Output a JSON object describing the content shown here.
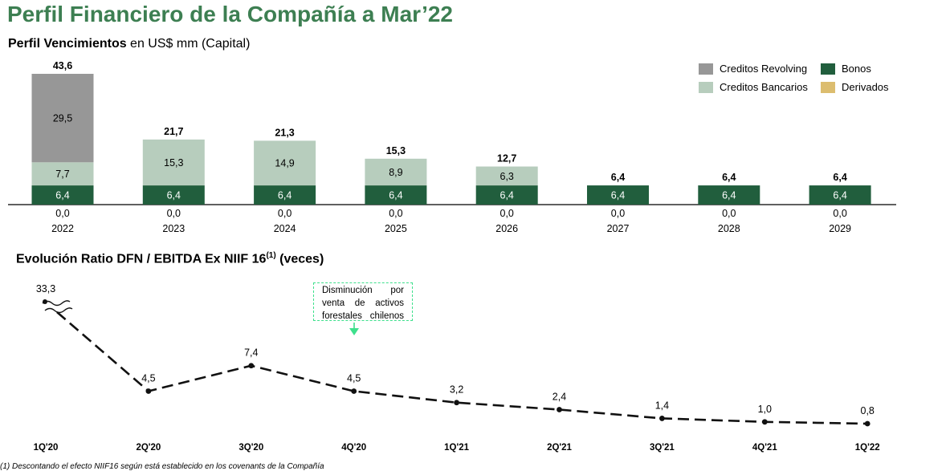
{
  "title": "Perfil Financiero de la Compañía a Mar’22",
  "section1": {
    "bold": "Perfil Vencimientos",
    "rest": " en US$ mm (Capital)"
  },
  "section2": {
    "label": "Evolución Ratio DFN / EBITDA Ex NIIF 16",
    "sup": "(1)",
    "suffix": " (veces)"
  },
  "callout": [
    "Disminución por",
    "venta de activos",
    "forestales chilenos"
  ],
  "footnote": "(1)    Descontando el efecto NIIF16 según está establecido en los covenants de la Compañía",
  "colors": {
    "bonos": "#215e3d",
    "bancarios": "#b7cdbd",
    "revolving": "#979797",
    "derivados": "#dcbd6f",
    "title_green": "#3d7f52",
    "callout_border": "#3ee08c"
  },
  "chart_data": [
    {
      "type": "bar",
      "stacked": true,
      "categories": [
        "2022",
        "2023",
        "2024",
        "2025",
        "2026",
        "2027",
        "2028",
        "2029"
      ],
      "series": [
        {
          "name": "Bonos",
          "values": [
            6.4,
            6.4,
            6.4,
            6.4,
            6.4,
            6.4,
            6.4,
            6.4
          ],
          "color": "#215e3d"
        },
        {
          "name": "Creditos Bancarios",
          "values": [
            7.7,
            15.3,
            14.9,
            8.9,
            6.3,
            0,
            0,
            0
          ],
          "color": "#b7cdbd"
        },
        {
          "name": "Creditos Revolving",
          "values": [
            29.5,
            0,
            0,
            0,
            0,
            0,
            0,
            0
          ],
          "color": "#979797"
        },
        {
          "name": "Derivados",
          "values": [
            0.0,
            0.0,
            0.0,
            0.0,
            0.0,
            0.0,
            0.0,
            0.0
          ],
          "color": "#dcbd6f"
        }
      ],
      "totals": [
        43.6,
        21.7,
        21.3,
        15.3,
        12.7,
        6.4,
        6.4,
        6.4
      ],
      "totals_labels": [
        "43,6",
        "21,7",
        "21,3",
        "15,3",
        "12,7",
        "6,4",
        "6,4",
        "6,4"
      ],
      "bonos_labels": [
        "6,4",
        "6,4",
        "6,4",
        "6,4",
        "6,4",
        "6,4",
        "6,4",
        "6,4"
      ],
      "bancarios_labels": [
        "7,7",
        "15,3",
        "14,9",
        "8,9",
        "6,3",
        "",
        "",
        ""
      ],
      "revolving_labels": [
        "29,5",
        "",
        "",
        "",
        "",
        "",
        "",
        ""
      ],
      "derivados_labels": [
        "0,0",
        "0,0",
        "0,0",
        "0,0",
        "0,0",
        "0,0",
        "0,0",
        "0,0"
      ],
      "legend": [
        {
          "name": "Creditos Revolving",
          "color": "#979797"
        },
        {
          "name": "Bonos",
          "color": "#215e3d"
        },
        {
          "name": "Creditos Bancarios",
          "color": "#b7cdbd"
        },
        {
          "name": "Derivados",
          "color": "#dcbd6f"
        }
      ],
      "legend_position": "top-right"
    },
    {
      "type": "line",
      "style": "dashed",
      "x": [
        "1Q'20",
        "2Q'20",
        "3Q'20",
        "4Q'20",
        "1Q'21",
        "2Q'21",
        "3Q'21",
        "4Q'21",
        "1Q'22"
      ],
      "values": [
        33.3,
        4.5,
        7.4,
        4.5,
        3.2,
        2.4,
        1.4,
        1.0,
        0.8
      ],
      "value_labels": [
        "33,3",
        "4,5",
        "7,4",
        "4,5",
        "3,2",
        "2,4",
        "1,4",
        "1,0",
        "0,8"
      ],
      "axis_break_at": "1Q'20"
    }
  ]
}
